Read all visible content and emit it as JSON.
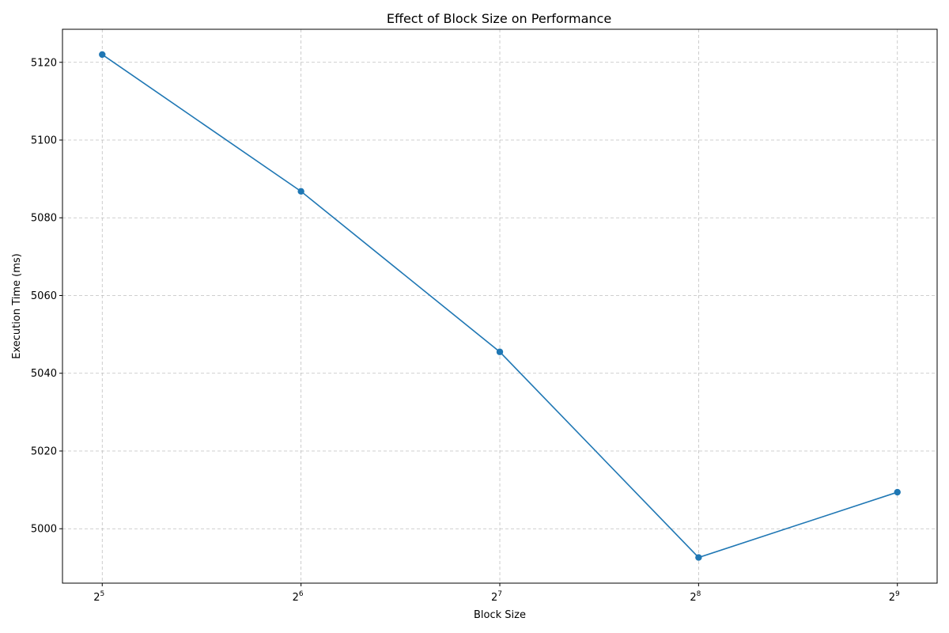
{
  "chart_data": {
    "type": "line",
    "title": "Effect of Block Size on Performance",
    "xlabel": "Block Size",
    "ylabel": "Execution Time (ms)",
    "x_scale": "log2",
    "x": [
      32,
      64,
      128,
      256,
      512
    ],
    "x_tick_exponents": [
      "5",
      "6",
      "7",
      "8",
      "9"
    ],
    "x_tick_base": "2",
    "series": [
      {
        "values": [
          5122.0,
          5086.8,
          5045.5,
          4992.6,
          5009.4
        ],
        "color": "#1f77b4",
        "marker": "circle"
      }
    ],
    "y_ticks": [
      5000,
      5020,
      5040,
      5060,
      5080,
      5100,
      5120
    ],
    "ylim": [
      4986.0,
      5128.5
    ],
    "grid": true
  }
}
